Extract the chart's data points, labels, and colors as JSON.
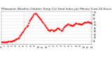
{
  "title": "Milwaukee Weather Outdoor Temp (vs) Heat Index per Minute (Last 24 Hours)",
  "line_color": "#ff0000",
  "line_style": "--",
  "line_width": 0.5,
  "marker": ".",
  "marker_size": 1.0,
  "background_color": "#ffffff",
  "grid_color": "#cccccc",
  "vline_x": 30,
  "vline_color": "#aaaaaa",
  "vline_style": ":",
  "ylim": [
    40,
    92
  ],
  "yticks": [
    45,
    50,
    55,
    60,
    65,
    70,
    75,
    80,
    85,
    90
  ],
  "title_fontsize": 3.0,
  "tick_fontsize": 2.2,
  "x_values": [
    0,
    1,
    2,
    3,
    4,
    5,
    6,
    7,
    8,
    9,
    10,
    11,
    12,
    13,
    14,
    15,
    16,
    17,
    18,
    19,
    20,
    21,
    22,
    23,
    24,
    25,
    26,
    27,
    28,
    29,
    30,
    31,
    32,
    33,
    34,
    35,
    36,
    37,
    38,
    39,
    40,
    41,
    42,
    43,
    44,
    45,
    46,
    47,
    48,
    49,
    50,
    51,
    52,
    53,
    54,
    55,
    56,
    57,
    58,
    59,
    60,
    61,
    62,
    63,
    64,
    65,
    66,
    67,
    68,
    69,
    70,
    71,
    72,
    73,
    74,
    75,
    76,
    77,
    78,
    79,
    80,
    81,
    82,
    83,
    84,
    85,
    86,
    87,
    88,
    89,
    90,
    91,
    92,
    93,
    94,
    95,
    96,
    97,
    98,
    99,
    100,
    101,
    102,
    103,
    104,
    105,
    106,
    107,
    108,
    109,
    110,
    111,
    112,
    113,
    114,
    115,
    116,
    117,
    118,
    119
  ],
  "y_values": [
    43,
    43,
    43,
    43,
    43,
    43,
    43,
    43,
    43,
    44,
    44,
    44,
    44,
    44,
    44,
    45,
    45,
    45,
    46,
    47,
    47,
    48,
    49,
    50,
    52,
    54,
    55,
    57,
    58,
    60,
    62,
    64,
    65,
    67,
    68,
    70,
    73,
    76,
    78,
    80,
    82,
    83,
    85,
    87,
    88,
    88,
    87,
    86,
    84,
    83,
    82,
    80,
    79,
    77,
    75,
    74,
    72,
    70,
    68,
    66,
    65,
    63,
    62,
    62,
    61,
    62,
    63,
    62,
    61,
    61,
    62,
    62,
    63,
    64,
    65,
    65,
    64,
    63,
    62,
    61,
    62,
    64,
    66,
    67,
    68,
    69,
    70,
    71,
    72,
    71,
    70,
    70,
    69,
    68,
    69,
    70,
    71,
    72,
    73,
    73,
    72,
    72,
    72,
    72,
    71,
    71,
    72,
    72,
    73,
    74,
    74,
    74,
    74,
    75,
    75,
    74,
    74,
    74,
    73,
    73
  ],
  "xtick_labels": [
    "12",
    "",
    "1",
    "",
    "2",
    "",
    "3",
    "",
    "4",
    "",
    "5",
    "",
    "6",
    "",
    "7",
    "",
    "8",
    "",
    "9",
    "",
    "10",
    "",
    "11",
    "",
    "12",
    "",
    "1",
    "",
    "2",
    "",
    "3",
    "",
    "4",
    "",
    "5",
    "",
    "6",
    "",
    "7",
    "",
    "8",
    "",
    "9",
    "",
    "10",
    "",
    "11",
    "",
    "12"
  ],
  "figwidth": 1.6,
  "figheight": 0.87,
  "dpi": 100
}
